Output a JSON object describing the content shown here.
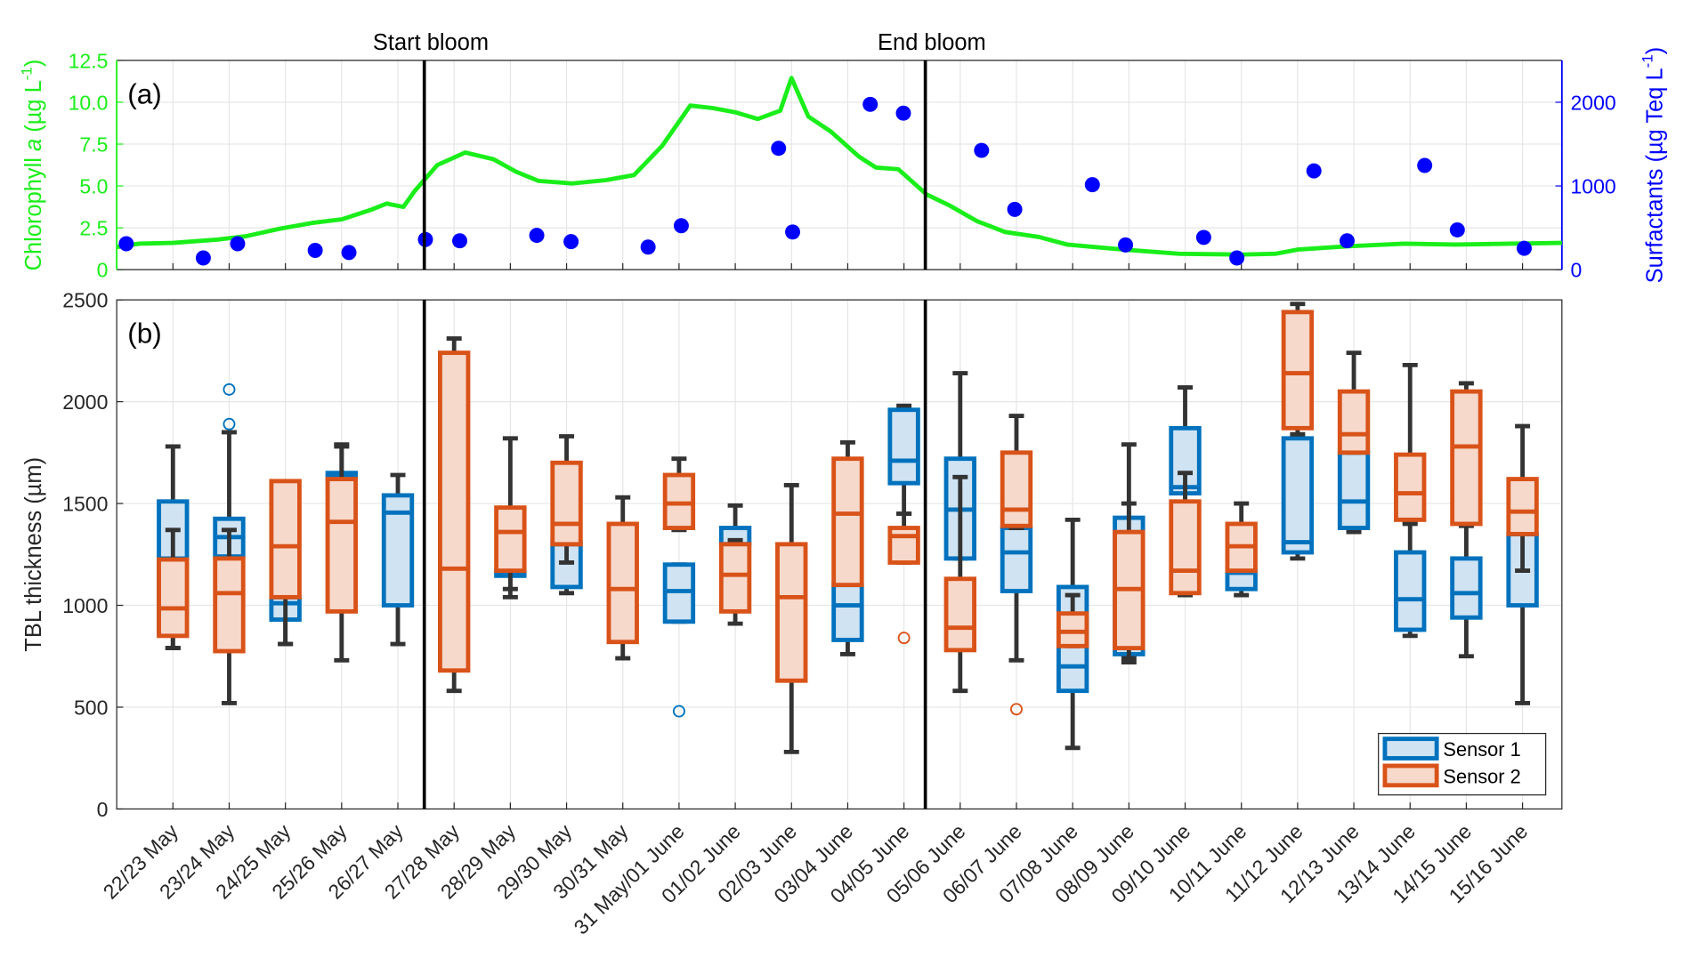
{
  "chart_data": [
    {
      "type": "line",
      "panel_label": "(a)",
      "xlim": [
        -1,
        24.7
      ],
      "ylabel": [
        "Chlorophyll ",
        "a",
        " (µg L",
        "-1",
        ")"
      ],
      "y2label": [
        "Surfactants (µg Teq L",
        "-1",
        ")"
      ],
      "ylim": [
        0,
        12.5
      ],
      "yticks": [
        0,
        2.5,
        {
          "value": 5,
          "label": "5.0"
        },
        7.5,
        {
          "value": 10,
          "label": "10.0"
        },
        12.5
      ],
      "y2lim": [
        0,
        2500
      ],
      "y2ticks": [
        0,
        1000,
        2000
      ],
      "grid": true,
      "series": [
        {
          "type": "line",
          "color": "#1aee1a",
          "x": [
            -1,
            -0.6,
            0,
            0.8,
            1.3,
            1.9,
            2.5,
            3.0,
            3.5,
            3.8,
            4.1,
            4.3,
            4.7,
            5.2,
            5.7,
            6.1,
            6.5,
            7.1,
            7.7,
            8.2,
            8.5,
            8.7,
            9.2,
            9.6,
            10.0,
            10.4,
            10.8,
            11.0,
            11.3,
            11.7,
            12.2,
            12.5,
            12.9,
            13.4,
            13.8,
            14.3,
            14.8,
            15.4,
            15.9,
            16.9,
            17.9,
            19.0,
            19.6,
            20.0,
            20.9,
            21.9,
            22.8,
            23.8,
            24.7
          ],
          "values": [
            1.35,
            1.55,
            1.6,
            1.8,
            2.0,
            2.45,
            2.8,
            3.0,
            3.55,
            3.95,
            3.75,
            4.7,
            6.25,
            7.0,
            6.6,
            5.85,
            5.3,
            5.15,
            5.35,
            5.65,
            6.7,
            7.4,
            9.8,
            9.65,
            9.4,
            9.0,
            9.5,
            11.45,
            9.15,
            8.25,
            6.75,
            6.1,
            6.0,
            4.5,
            3.85,
            2.9,
            2.25,
            1.95,
            1.5,
            1.2,
            0.95,
            0.9,
            0.95,
            1.2,
            1.4,
            1.55,
            1.5,
            1.55,
            1.6
          ]
        },
        {
          "type": "scatter",
          "axis": "y2",
          "color": "#0000ff",
          "x": [
            -0.83,
            0.54,
            1.15,
            2.53,
            3.13,
            4.49,
            5.1,
            6.47,
            7.08,
            8.45,
            9.04,
            10.77,
            11.02,
            12.4,
            12.99,
            14.38,
            14.97,
            16.35,
            16.94,
            18.33,
            18.92,
            20.29,
            20.88,
            22.26,
            22.84,
            24.03
          ],
          "values": [
            310,
            140,
            310,
            230,
            205,
            360,
            345,
            410,
            335,
            270,
            525,
            1450,
            450,
            1975,
            1870,
            1425,
            720,
            1015,
            295,
            385,
            140,
            1180,
            345,
            1245,
            475,
            255
          ]
        }
      ],
      "annotations": [
        {
          "x": 4.47,
          "label": "Start bloom"
        },
        {
          "x": 13.38,
          "label": "End bloom"
        }
      ]
    },
    {
      "type": "box",
      "panel_label": "(b)",
      "ylabel": "TBL thickness (µm)",
      "ylim": [
        0,
        2500
      ],
      "yticks": [
        0,
        500,
        1000,
        1500,
        2000,
        2500
      ],
      "grid": true,
      "legend": "lower right",
      "categories": [
        "22/23 May",
        "23/24 May",
        "24/25 May",
        "25/26 May",
        "26/27 May",
        "27/28 May",
        "28/29 May",
        "29/30 May",
        "30/31 May",
        "31 May/01 June",
        "01/02 June",
        "02/03 June",
        "03/04 June",
        "04/05 June",
        "05/06 June",
        "06/07 June",
        "07/08 June",
        "08/09 June",
        "09/10 June",
        "10/11 June",
        "11/12 June",
        "12/13 June",
        "13/14 June",
        "14/15 June",
        "15/16 June"
      ],
      "series": [
        {
          "name": "Sensor 1",
          "color": "#0072bd",
          "fill": "#cfe3f3",
          "boxes": [
            {
              "low": 790,
              "q1": 860,
              "median": 1230,
              "q3": 1510,
              "high": 1780
            },
            {
              "low": 1230,
              "q1": 1240,
              "median": 1335,
              "q3": 1425,
              "high": 1850,
              "outliers": [
                1890,
                2060
              ]
            },
            {
              "low": 810,
              "q1": 930,
              "median": 1010,
              "q3": 1040,
              "high": 1040
            },
            {
              "low": 1600,
              "q1": 1620,
              "median": 1640,
              "q3": 1650,
              "high": 1790
            },
            {
              "low": 810,
              "q1": 1000,
              "median": 1455,
              "q3": 1540,
              "high": 1640
            },
            null,
            {
              "low": 1080,
              "q1": 1145,
              "median": 1160,
              "q3": 1170,
              "high": 1180
            },
            {
              "low": 1060,
              "q1": 1090,
              "median": 1300,
              "q3": 1310,
              "high": 1310
            },
            null,
            {
              "low": 920,
              "q1": 920,
              "median": 1070,
              "q3": 1200,
              "high": 1200,
              "outliers": [
                480
              ]
            },
            {
              "low": 1260,
              "q1": 1300,
              "median": 1300,
              "q3": 1380,
              "high": 1490
            },
            null,
            {
              "low": 760,
              "q1": 830,
              "median": 1000,
              "q3": 1100,
              "high": 1100
            },
            {
              "low": 1450,
              "q1": 1600,
              "median": 1710,
              "q3": 1960,
              "high": 1980
            },
            {
              "low": 1230,
              "q1": 1230,
              "median": 1470,
              "q3": 1720,
              "high": 2140
            },
            {
              "low": 730,
              "q1": 1070,
              "median": 1260,
              "q3": 1380,
              "high": 1420
            },
            {
              "low": 300,
              "q1": 580,
              "median": 700,
              "q3": 1090,
              "high": 1420
            },
            {
              "low": 720,
              "q1": 760,
              "median": 1100,
              "q3": 1430,
              "high": 1790
            },
            {
              "low": 1060,
              "q1": 1550,
              "median": 1580,
              "q3": 1870,
              "high": 2070
            },
            {
              "low": 1050,
              "q1": 1080,
              "median": 1160,
              "q3": 1170,
              "high": 1170
            },
            {
              "low": 1230,
              "q1": 1260,
              "median": 1310,
              "q3": 1820,
              "high": 1820
            },
            {
              "low": 1360,
              "q1": 1380,
              "median": 1510,
              "q3": 1750,
              "high": 1750
            },
            {
              "low": 850,
              "q1": 880,
              "median": 1030,
              "q3": 1260,
              "high": 1400
            },
            {
              "low": 750,
              "q1": 940,
              "median": 1060,
              "q3": 1230,
              "high": 1390
            },
            {
              "low": 520,
              "q1": 1000,
              "median": 1350,
              "q3": 1350,
              "high": 1350
            }
          ]
        },
        {
          "name": "Sensor 2",
          "color": "#d95319",
          "fill": "#f7d9cb",
          "boxes": [
            {
              "low": 790,
              "q1": 850,
              "median": 985,
              "q3": 1225,
              "high": 1370
            },
            {
              "low": 520,
              "q1": 775,
              "median": 1060,
              "q3": 1230,
              "high": 1370
            },
            {
              "low": 810,
              "q1": 1040,
              "median": 1290,
              "q3": 1610,
              "high": 1610
            },
            {
              "low": 730,
              "q1": 970,
              "median": 1410,
              "q3": 1620,
              "high": 1780
            },
            null,
            {
              "low": 580,
              "q1": 680,
              "median": 1180,
              "q3": 2240,
              "high": 2310
            },
            {
              "low": 1040,
              "q1": 1170,
              "median": 1360,
              "q3": 1480,
              "high": 1820
            },
            {
              "low": 1210,
              "q1": 1300,
              "median": 1400,
              "q3": 1700,
              "high": 1830
            },
            {
              "low": 740,
              "q1": 820,
              "median": 1080,
              "q3": 1400,
              "high": 1530
            },
            {
              "low": 1370,
              "q1": 1380,
              "median": 1500,
              "q3": 1640,
              "high": 1720
            },
            {
              "low": 910,
              "q1": 970,
              "median": 1150,
              "q3": 1300,
              "high": 1320
            },
            {
              "low": 280,
              "q1": 630,
              "median": 1040,
              "q3": 1300,
              "high": 1590
            },
            {
              "low": 1100,
              "q1": 1100,
              "median": 1450,
              "q3": 1720,
              "high": 1800
            },
            {
              "low": 1210,
              "q1": 1210,
              "median": 1340,
              "q3": 1380,
              "high": 1450,
              "outliers": [
                840
              ]
            },
            {
              "low": 580,
              "q1": 780,
              "median": 890,
              "q3": 1130,
              "high": 1630
            },
            {
              "low": 1380,
              "q1": 1390,
              "median": 1470,
              "q3": 1750,
              "high": 1930,
              "outliers": [
                490
              ]
            },
            {
              "low": 800,
              "q1": 800,
              "median": 870,
              "q3": 960,
              "high": 1050
            },
            {
              "low": 740,
              "q1": 790,
              "median": 1080,
              "q3": 1360,
              "high": 1500
            },
            {
              "low": 1050,
              "q1": 1060,
              "median": 1170,
              "q3": 1510,
              "high": 1650
            },
            {
              "low": 1170,
              "q1": 1170,
              "median": 1290,
              "q3": 1400,
              "high": 1500
            },
            {
              "low": 1840,
              "q1": 1870,
              "median": 2140,
              "q3": 2440,
              "high": 2480
            },
            {
              "low": 1750,
              "q1": 1750,
              "median": 1840,
              "q3": 2050,
              "high": 2240
            },
            {
              "low": 1410,
              "q1": 1420,
              "median": 1550,
              "q3": 1740,
              "high": 2180
            },
            {
              "low": 1400,
              "q1": 1400,
              "median": 1780,
              "q3": 2050,
              "high": 2090
            },
            {
              "low": 1170,
              "q1": 1350,
              "median": 1460,
              "q3": 1620,
              "high": 1880
            }
          ]
        }
      ]
    }
  ]
}
